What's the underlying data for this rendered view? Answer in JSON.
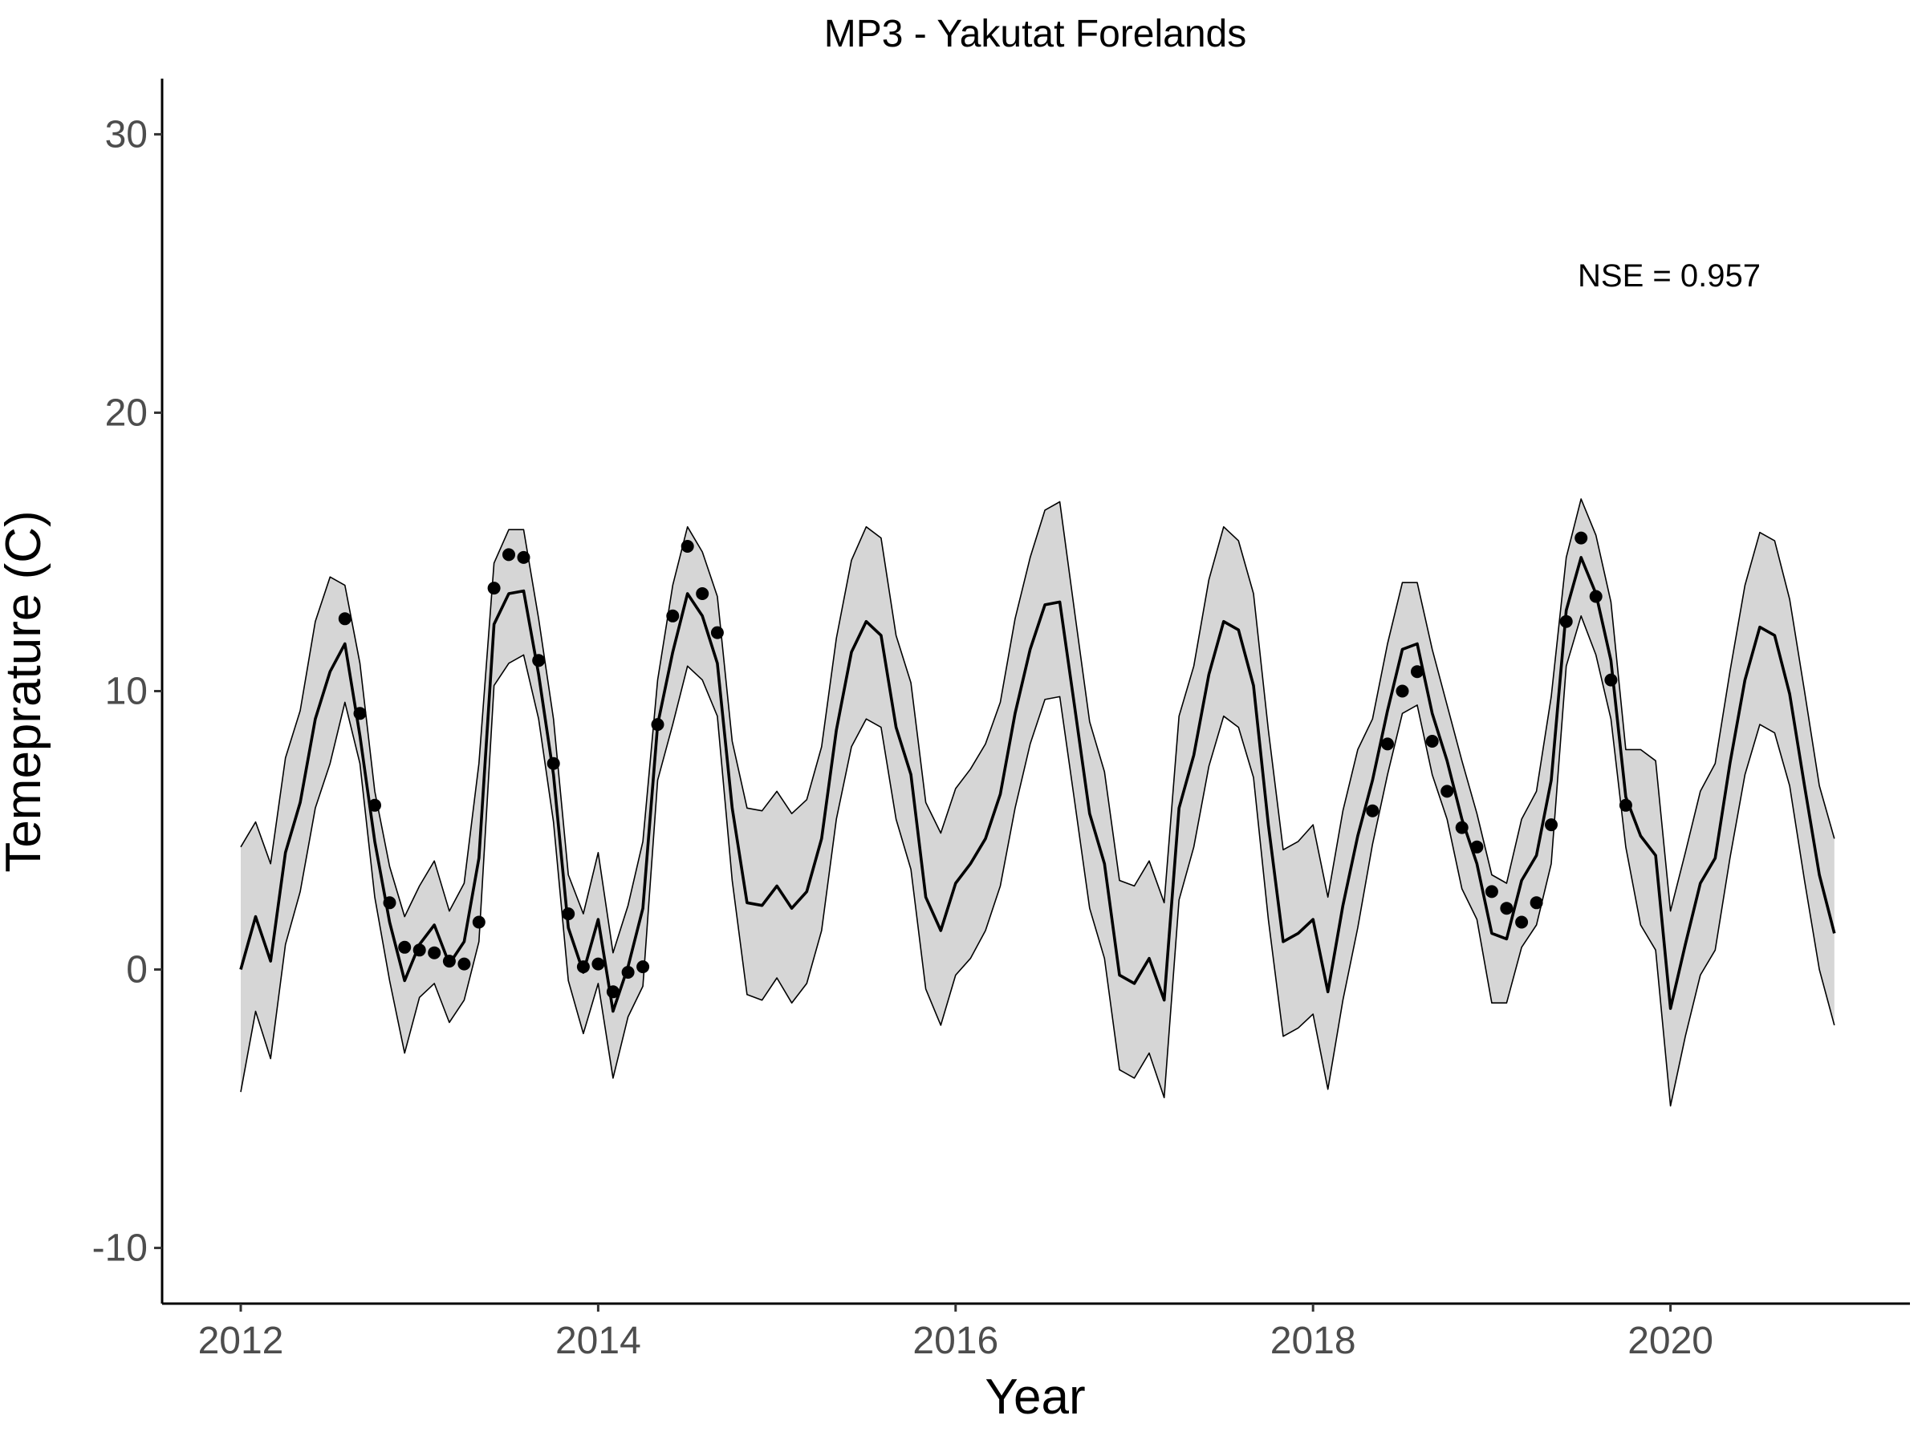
{
  "chart_data": {
    "type": "line",
    "title": "MP3 - Yakutat Forelands",
    "xlabel": "Year",
    "ylabel": "Temeprature (C)",
    "xlim": [
      2011.56,
      2021.34
    ],
    "ylim": [
      -12,
      32
    ],
    "x_ticks": [
      2012,
      2014,
      2016,
      2018,
      2020
    ],
    "y_ticks": [
      -10,
      0,
      10,
      20,
      30
    ],
    "annotation": "NSE = 0.957",
    "grid": false,
    "legend": "none",
    "colors": {
      "line": "#000000",
      "band_fill": "#d6d6d6",
      "band_edge": "#000000",
      "points": "#000000"
    },
    "series": [
      {
        "kind": "model_line",
        "x": [
          2012.0,
          2012.083,
          2012.167,
          2012.25,
          2012.333,
          2012.417,
          2012.5,
          2012.583,
          2012.667,
          2012.75,
          2012.833,
          2012.917,
          2013.0,
          2013.083,
          2013.167,
          2013.25,
          2013.333,
          2013.417,
          2013.5,
          2013.583,
          2013.667,
          2013.75,
          2013.833,
          2013.917,
          2014.0,
          2014.083,
          2014.167,
          2014.25,
          2014.333,
          2014.417,
          2014.5,
          2014.583,
          2014.667,
          2014.75,
          2014.833,
          2014.917,
          2015.0,
          2015.083,
          2015.167,
          2015.25,
          2015.333,
          2015.417,
          2015.5,
          2015.583,
          2015.667,
          2015.75,
          2015.833,
          2015.917,
          2016.0,
          2016.083,
          2016.167,
          2016.25,
          2016.333,
          2016.417,
          2016.5,
          2016.583,
          2016.667,
          2016.75,
          2016.833,
          2016.917,
          2017.0,
          2017.083,
          2017.167,
          2017.25,
          2017.333,
          2017.417,
          2017.5,
          2017.583,
          2017.667,
          2017.75,
          2017.833,
          2017.917,
          2018.0,
          2018.083,
          2018.167,
          2018.25,
          2018.333,
          2018.417,
          2018.5,
          2018.583,
          2018.667,
          2018.75,
          2018.833,
          2018.917,
          2019.0,
          2019.083,
          2019.167,
          2019.25,
          2019.333,
          2019.417,
          2019.5,
          2019.583,
          2019.667,
          2019.75,
          2019.833,
          2019.917,
          2020.0,
          2020.083,
          2020.167,
          2020.25,
          2020.333,
          2020.417,
          2020.5,
          2020.583,
          2020.667,
          2020.75,
          2020.833,
          2020.917
        ],
        "y": [
          0.0,
          1.9,
          0.3,
          4.2,
          6.0,
          9.0,
          10.7,
          11.7,
          8.4,
          4.6,
          1.7,
          -0.4,
          0.9,
          1.6,
          0.2,
          1.0,
          4.0,
          12.4,
          13.5,
          13.6,
          10.6,
          7.0,
          1.5,
          -0.1,
          1.8,
          -1.5,
          0.1,
          2.2,
          8.8,
          11.4,
          13.5,
          12.7,
          11.0,
          5.8,
          2.4,
          2.3,
          3.0,
          2.2,
          2.8,
          4.7,
          8.6,
          11.4,
          12.5,
          12.0,
          8.7,
          7.0,
          2.6,
          1.4,
          3.1,
          3.8,
          4.7,
          6.3,
          9.2,
          11.5,
          13.1,
          13.2,
          9.4,
          5.6,
          3.8,
          -0.2,
          -0.5,
          0.4,
          -1.1,
          5.8,
          7.7,
          10.6,
          12.5,
          12.2,
          10.2,
          5.2,
          1.0,
          1.3,
          1.8,
          -0.8,
          2.3,
          4.8,
          6.8,
          9.3,
          11.5,
          11.7,
          9.2,
          7.5,
          5.4,
          3.8,
          1.3,
          1.1,
          3.2,
          4.1,
          6.8,
          12.9,
          14.8,
          13.5,
          11.1,
          6.2,
          4.8,
          4.1,
          -1.4,
          0.9,
          3.1,
          4.0,
          7.4,
          10.4,
          12.3,
          12.0,
          9.9,
          6.6,
          3.4,
          1.3
        ]
      },
      {
        "kind": "band_upper",
        "y": [
          4.4,
          5.3,
          3.8,
          7.6,
          9.3,
          12.5,
          14.1,
          13.8,
          11.0,
          6.4,
          3.7,
          1.9,
          3.0,
          3.9,
          2.1,
          3.1,
          7.4,
          14.6,
          15.8,
          15.8,
          12.6,
          9.0,
          3.4,
          2.0,
          4.2,
          0.6,
          2.3,
          4.6,
          10.4,
          13.8,
          15.9,
          15.0,
          13.4,
          8.2,
          5.8,
          5.7,
          6.4,
          5.6,
          6.1,
          8.0,
          11.9,
          14.7,
          15.9,
          15.5,
          12.0,
          10.3,
          6.0,
          4.9,
          6.5,
          7.2,
          8.1,
          9.6,
          12.6,
          14.8,
          16.5,
          16.8,
          12.8,
          8.9,
          7.1,
          3.2,
          3.0,
          3.9,
          2.4,
          9.1,
          10.9,
          14.0,
          15.9,
          15.4,
          13.5,
          8.6,
          4.3,
          4.6,
          5.2,
          2.6,
          5.7,
          7.9,
          9.0,
          11.7,
          13.9,
          13.9,
          11.5,
          9.5,
          7.5,
          5.6,
          3.4,
          3.1,
          5.4,
          6.4,
          9.8,
          14.8,
          16.9,
          15.6,
          13.2,
          7.9,
          7.9,
          7.5,
          2.1,
          4.2,
          6.4,
          7.4,
          10.7,
          13.8,
          15.7,
          15.4,
          13.3,
          10.0,
          6.6,
          4.7
        ]
      },
      {
        "kind": "band_lower",
        "y": [
          -4.4,
          -1.5,
          -3.2,
          0.9,
          2.8,
          5.8,
          7.4,
          9.6,
          7.4,
          2.6,
          -0.4,
          -3.0,
          -1.0,
          -0.5,
          -1.9,
          -1.1,
          1.0,
          10.2,
          11.0,
          11.3,
          9.0,
          5.3,
          -0.4,
          -2.3,
          -0.5,
          -3.9,
          -1.7,
          -0.6,
          6.8,
          8.8,
          10.9,
          10.4,
          9.1,
          3.2,
          -0.9,
          -1.1,
          -0.3,
          -1.2,
          -0.5,
          1.4,
          5.4,
          8.0,
          9.0,
          8.7,
          5.4,
          3.6,
          -0.7,
          -2.0,
          -0.2,
          0.4,
          1.4,
          3.0,
          5.8,
          8.1,
          9.7,
          9.8,
          6.0,
          2.2,
          0.4,
          -3.6,
          -3.9,
          -3.0,
          -4.6,
          2.5,
          4.4,
          7.3,
          9.1,
          8.7,
          6.9,
          1.8,
          -2.4,
          -2.1,
          -1.6,
          -4.3,
          -1.1,
          1.5,
          4.5,
          7.0,
          9.2,
          9.5,
          7.0,
          5.4,
          2.9,
          1.8,
          -1.2,
          -1.2,
          0.8,
          1.6,
          3.8,
          10.9,
          12.7,
          11.3,
          9.0,
          4.4,
          1.6,
          0.7,
          -4.9,
          -2.4,
          -0.2,
          0.7,
          4.0,
          7.0,
          8.8,
          8.5,
          6.6,
          3.2,
          0.0,
          -2.0
        ]
      },
      {
        "kind": "observed_points",
        "x": [
          2012.583,
          2012.667,
          2012.75,
          2012.833,
          2012.917,
          2013.0,
          2013.083,
          2013.167,
          2013.25,
          2013.333,
          2013.417,
          2013.5,
          2013.583,
          2013.667,
          2013.75,
          2013.833,
          2013.917,
          2014.0,
          2014.083,
          2014.167,
          2014.25,
          2014.333,
          2014.417,
          2014.5,
          2014.583,
          2014.667,
          2018.333,
          2018.417,
          2018.5,
          2018.583,
          2018.667,
          2018.75,
          2018.833,
          2018.917,
          2019.0,
          2019.083,
          2019.167,
          2019.25,
          2019.333,
          2019.417,
          2019.5,
          2019.583,
          2019.667,
          2019.75
        ],
        "y": [
          12.6,
          9.2,
          5.9,
          2.4,
          0.8,
          0.7,
          0.6,
          0.3,
          0.2,
          1.7,
          13.7,
          14.9,
          14.8,
          11.1,
          7.4,
          2.0,
          0.1,
          0.2,
          -0.8,
          -0.1,
          0.1,
          8.8,
          12.7,
          15.2,
          13.5,
          12.1,
          5.7,
          8.1,
          10.0,
          10.7,
          8.2,
          6.4,
          5.1,
          4.4,
          2.8,
          2.2,
          1.7,
          2.4,
          5.2,
          12.5,
          15.5,
          13.4,
          10.4,
          5.9
        ]
      }
    ]
  }
}
